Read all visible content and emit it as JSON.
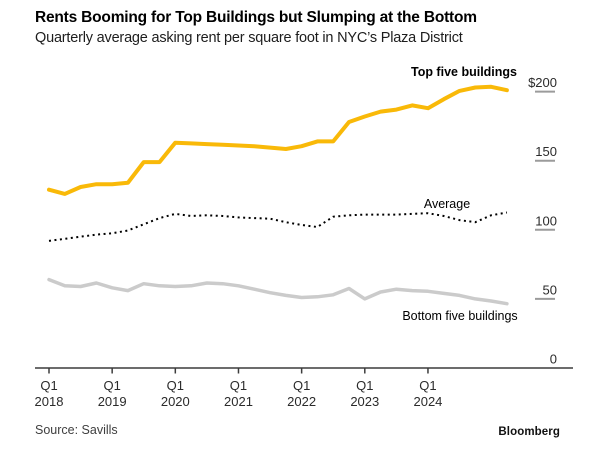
{
  "header": {
    "title": "Rents Booming for Top Buildings but Slumping at the Bottom",
    "subtitle": "Quarterly average asking rent per square foot in NYC’s Plaza District"
  },
  "footer": {
    "source": "Source: Savills",
    "brand": "Bloomberg"
  },
  "colors": {
    "top_line": "#F9B908",
    "average_line": "#000000",
    "bottom_line": "#CBCBCB",
    "axis": "#3c3c3c",
    "axis_text": "#2b2b2b",
    "y_tick": "#9b9b9b"
  },
  "chart_data": {
    "type": "line",
    "title": "Rents Booming for Top Buildings but Slumping at the Bottom",
    "subtitle": "Quarterly average asking rent per square foot in NYC’s Plaza District",
    "ylabel": "",
    "xlabel": "",
    "ylim": [
      0,
      200
    ],
    "grid": false,
    "legend_position": "inline-annotations",
    "x": [
      "Q1 2018",
      "Q2 2018",
      "Q3 2018",
      "Q4 2018",
      "Q1 2019",
      "Q2 2019",
      "Q3 2019",
      "Q4 2019",
      "Q1 2020",
      "Q2 2020",
      "Q3 2020",
      "Q4 2020",
      "Q1 2021",
      "Q2 2021",
      "Q3 2021",
      "Q4 2021",
      "Q1 2022",
      "Q2 2022",
      "Q3 2022",
      "Q4 2022",
      "Q1 2023",
      "Q2 2023",
      "Q3 2023",
      "Q4 2023",
      "Q1 2024",
      "Q2 2024",
      "Q3 2024",
      "Q4 2024",
      "Q1 2025",
      "Q2 2025"
    ],
    "x_ticks": [
      {
        "line1": "Q1",
        "line2": "2018"
      },
      {
        "line1": "Q1",
        "line2": "2019"
      },
      {
        "line1": "Q1",
        "line2": "2020"
      },
      {
        "line1": "Q1",
        "line2": "2021"
      },
      {
        "line1": "Q1",
        "line2": "2022"
      },
      {
        "line1": "Q1",
        "line2": "2023"
      },
      {
        "line1": "Q1",
        "line2": "2024"
      }
    ],
    "y_ticks": [
      {
        "label": "$200",
        "value": 200
      },
      {
        "label": "150",
        "value": 150
      },
      {
        "label": "100",
        "value": 100
      },
      {
        "label": "50",
        "value": 50
      },
      {
        "label": "0",
        "value": 0
      }
    ],
    "series": [
      {
        "id": "top",
        "name": "Top five buildings",
        "color": "#F9B908",
        "style": "solid",
        "values": [
          129,
          126,
          131,
          133,
          133,
          134,
          149,
          149,
          163,
          162.5,
          162,
          161.5,
          161,
          160.5,
          159.5,
          158.5,
          160.5,
          164,
          164,
          178,
          182,
          185.5,
          187,
          190,
          188,
          194.5,
          200.5,
          203,
          203.5,
          201
        ]
      },
      {
        "id": "average",
        "name": "Average",
        "color": "#000000",
        "style": "dotted",
        "values": [
          92,
          93.5,
          95,
          96.5,
          97.5,
          99.5,
          104,
          108.5,
          111.5,
          110,
          110.5,
          110,
          109,
          108.5,
          108,
          105.5,
          103.5,
          102,
          109.5,
          110.5,
          111,
          111,
          111,
          111.5,
          112,
          110,
          107,
          105.5,
          110.5,
          112.5
        ]
      },
      {
        "id": "bottom",
        "name": "Bottom five buildings",
        "color": "#CBCBCB",
        "style": "solid",
        "values": [
          64,
          59.5,
          59,
          61.5,
          58,
          56,
          61,
          59.5,
          59,
          59.5,
          61.5,
          61,
          59.5,
          57,
          54.5,
          52.5,
          51,
          51.5,
          53,
          57.5,
          50,
          55,
          57,
          56,
          55.5,
          54,
          52.5,
          50,
          48.5,
          46.5
        ]
      }
    ]
  }
}
